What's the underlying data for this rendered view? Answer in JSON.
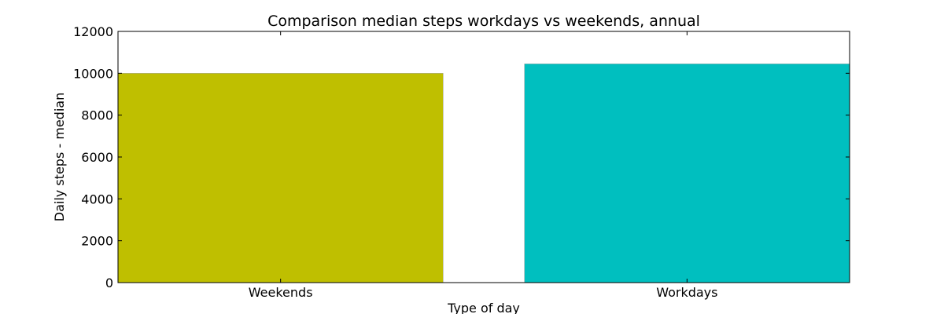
{
  "chart_data": {
    "type": "bar",
    "title": "Comparison median steps workdays vs weekends, annual",
    "xlabel": "Type of day",
    "ylabel": "Daily steps - median",
    "categories": [
      "Weekends",
      "Workdays"
    ],
    "values": [
      10000,
      10450
    ],
    "colors": [
      "#bfbf00",
      "#00bfbf"
    ],
    "ylim": [
      0,
      12000
    ],
    "yticks": [
      0,
      2000,
      4000,
      6000,
      8000,
      10000,
      12000
    ],
    "grid": false,
    "legend": "none"
  }
}
